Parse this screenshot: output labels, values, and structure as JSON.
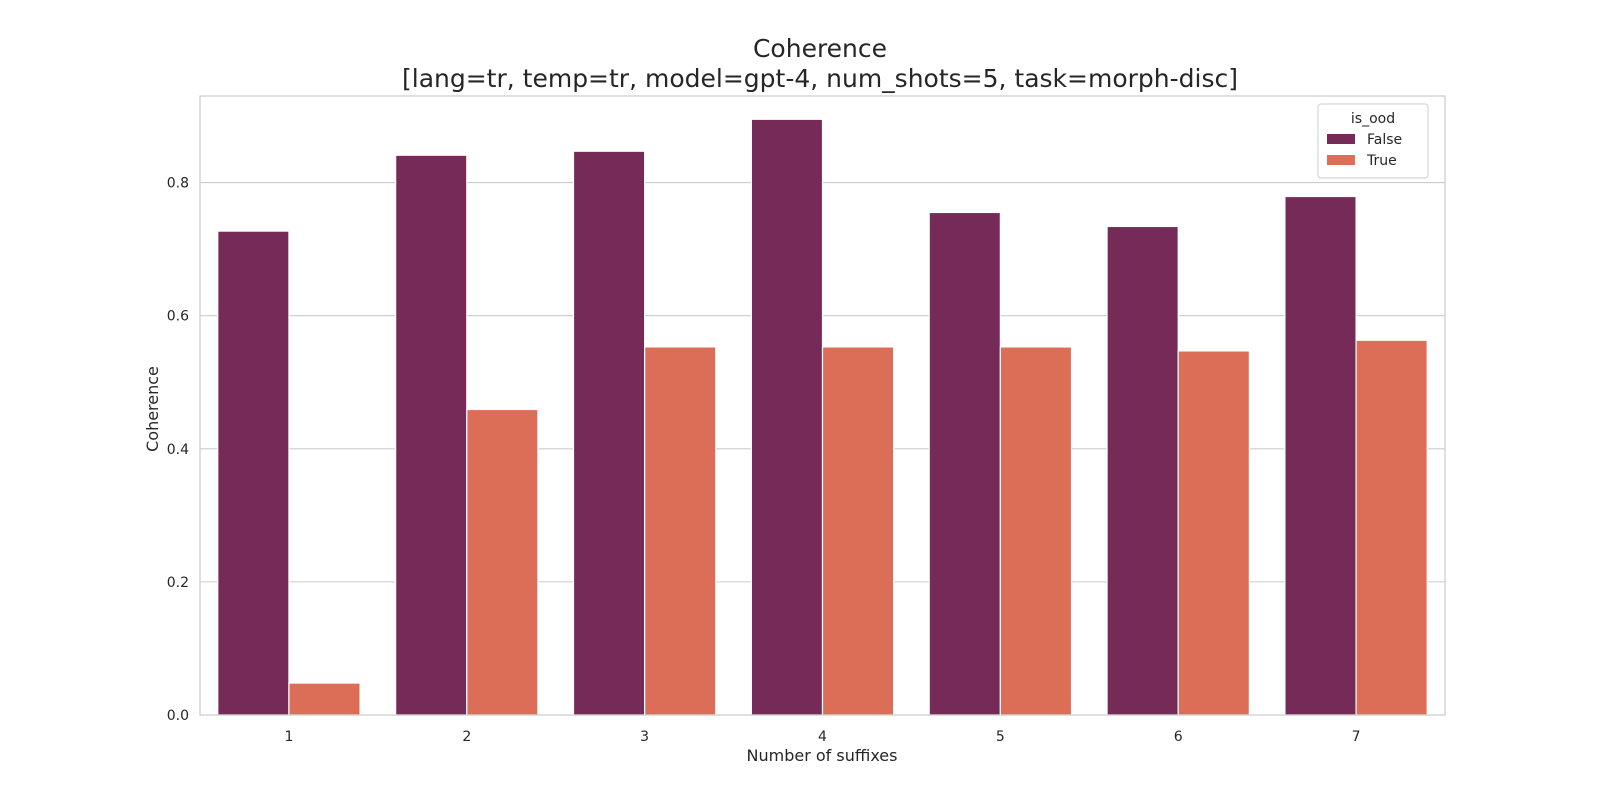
{
  "chart_data": {
    "type": "bar",
    "title": "Coherence",
    "subtitle": "[lang=tr, temp=tr, model=gpt-4, num_shots=5, task=morph-disc]",
    "xlabel": "Number of suffixes",
    "ylabel": "Coherence",
    "categories": [
      "1",
      "2",
      "3",
      "4",
      "5",
      "6",
      "7"
    ],
    "ylim": [
      0,
      0.93
    ],
    "yticks": [
      0.0,
      0.2,
      0.4,
      0.6,
      0.8
    ],
    "ytick_labels": [
      "0.0",
      "0.2",
      "0.4",
      "0.6",
      "0.8"
    ],
    "grid": true,
    "legend": {
      "title": "is_ood",
      "placement": "top-right"
    },
    "series": [
      {
        "name": "False",
        "color": "#762a57",
        "values": [
          0.727,
          0.841,
          0.847,
          0.895,
          0.755,
          0.734,
          0.779
        ]
      },
      {
        "name": "True",
        "color": "#dc6e58",
        "values": [
          0.048,
          0.459,
          0.553,
          0.553,
          0.553,
          0.547,
          0.563
        ]
      }
    ]
  }
}
